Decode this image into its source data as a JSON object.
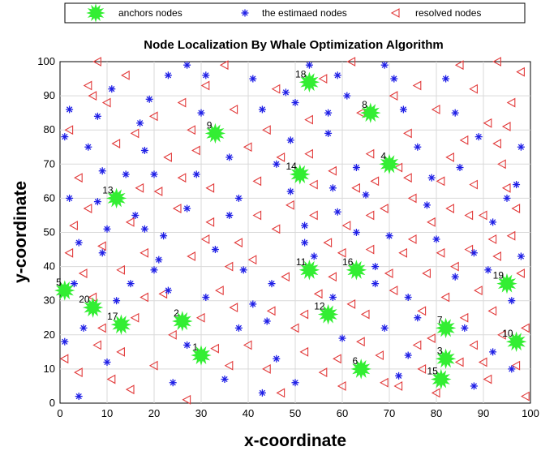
{
  "chart_data": {
    "type": "scatter",
    "title": "Node Localization By Whale Optimization Algorithm",
    "xlabel": "x-coordinate",
    "ylabel": "y-coordinate",
    "xlim": [
      0,
      100
    ],
    "ylim": [
      0,
      100
    ],
    "xticks": [
      0,
      10,
      20,
      30,
      40,
      50,
      60,
      70,
      80,
      90,
      100
    ],
    "yticks": [
      0,
      10,
      20,
      30,
      40,
      50,
      60,
      70,
      80,
      90,
      100
    ],
    "grid": true,
    "legend_position": "top, outside plot",
    "series": [
      {
        "name": "anchors nodes",
        "marker": "starburst",
        "color": "#33ee33",
        "points": [
          {
            "label": "1",
            "x": 30,
            "y": 14
          },
          {
            "label": "2",
            "x": 26,
            "y": 24
          },
          {
            "label": "3",
            "x": 82,
            "y": 13
          },
          {
            "label": "4",
            "x": 70,
            "y": 70
          },
          {
            "label": "5",
            "x": 1,
            "y": 33
          },
          {
            "label": "6",
            "x": 64,
            "y": 10
          },
          {
            "label": "7",
            "x": 82,
            "y": 22
          },
          {
            "label": "8",
            "x": 66,
            "y": 85
          },
          {
            "label": "9",
            "x": 33,
            "y": 79
          },
          {
            "label": "10",
            "x": 97,
            "y": 18
          },
          {
            "label": "11",
            "x": 53,
            "y": 39
          },
          {
            "label": "12",
            "x": 57,
            "y": 26
          },
          {
            "label": "13",
            "x": 12,
            "y": 60
          },
          {
            "label": "14",
            "x": 51,
            "y": 67
          },
          {
            "label": "15",
            "x": 81,
            "y": 7
          },
          {
            "label": "16",
            "x": 63,
            "y": 39
          },
          {
            "label": "17",
            "x": 13,
            "y": 23
          },
          {
            "label": "18",
            "x": 53,
            "y": 94
          },
          {
            "label": "19",
            "x": 95,
            "y": 35
          },
          {
            "label": "20",
            "x": 7,
            "y": 28
          }
        ]
      },
      {
        "name": "the estimaed nodes",
        "marker": "asterisk",
        "color": "#1f1fe6",
        "points": [
          [
            2,
            86
          ],
          [
            1,
            78
          ],
          [
            2,
            60
          ],
          [
            6,
            75
          ],
          [
            4,
            47
          ],
          [
            8,
            84
          ],
          [
            9,
            68
          ],
          [
            8,
            59
          ],
          [
            10,
            51
          ],
          [
            11,
            92
          ],
          [
            14,
            67
          ],
          [
            16,
            55
          ],
          [
            18,
            74
          ],
          [
            19,
            89
          ],
          [
            20,
            67
          ],
          [
            23,
            96
          ],
          [
            21,
            42
          ],
          [
            27,
            99
          ],
          [
            31,
            96
          ],
          [
            29,
            67
          ],
          [
            36,
            72
          ],
          [
            41,
            95
          ],
          [
            43,
            86
          ],
          [
            48,
            91
          ],
          [
            49,
            77
          ],
          [
            50,
            88
          ],
          [
            53,
            99
          ],
          [
            57,
            79
          ],
          [
            59,
            96
          ],
          [
            61,
            90
          ],
          [
            63,
            69
          ],
          [
            65,
            61
          ],
          [
            69,
            99
          ],
          [
            73,
            86
          ],
          [
            76,
            75
          ],
          [
            79,
            66
          ],
          [
            82,
            95
          ],
          [
            84,
            85
          ],
          [
            85,
            69
          ],
          [
            89,
            78
          ],
          [
            92,
            53
          ],
          [
            95,
            60
          ],
          [
            98,
            75
          ],
          [
            97,
            64
          ],
          [
            3,
            35
          ],
          [
            5,
            22
          ],
          [
            4,
            2
          ],
          [
            10,
            12
          ],
          [
            15,
            35
          ],
          [
            18,
            51
          ],
          [
            20,
            39
          ],
          [
            23,
            33
          ],
          [
            24,
            6
          ],
          [
            27,
            17
          ],
          [
            31,
            31
          ],
          [
            33,
            45
          ],
          [
            35,
            7
          ],
          [
            38,
            22
          ],
          [
            39,
            39
          ],
          [
            41,
            29
          ],
          [
            44,
            24
          ],
          [
            46,
            13
          ],
          [
            50,
            6
          ],
          [
            52,
            47
          ],
          [
            52,
            52
          ],
          [
            54,
            43
          ],
          [
            58,
            31
          ],
          [
            59,
            56
          ],
          [
            60,
            19
          ],
          [
            63,
            50
          ],
          [
            67,
            35
          ],
          [
            69,
            22
          ],
          [
            72,
            8
          ],
          [
            74,
            31
          ],
          [
            74,
            14
          ],
          [
            76,
            25
          ],
          [
            80,
            48
          ],
          [
            84,
            37
          ],
          [
            86,
            22
          ],
          [
            88,
            5
          ],
          [
            91,
            39
          ],
          [
            92,
            15
          ],
          [
            96,
            10
          ],
          [
            96,
            30
          ],
          [
            98,
            43
          ],
          [
            1,
            18
          ],
          [
            12,
            30
          ],
          [
            22,
            49
          ],
          [
            36,
            55
          ],
          [
            45,
            35
          ],
          [
            49,
            62
          ],
          [
            58,
            63
          ],
          [
            70,
            49
          ],
          [
            78,
            58
          ],
          [
            88,
            44
          ],
          [
            67,
            40
          ],
          [
            30,
            85
          ],
          [
            38,
            60
          ],
          [
            46,
            70
          ],
          [
            71,
            95
          ],
          [
            57,
            85
          ],
          [
            27,
            57
          ],
          [
            17,
            82
          ],
          [
            9,
            44
          ],
          [
            43,
            3
          ]
        ]
      },
      {
        "name": "resolved nodes",
        "marker": "triangle-left",
        "color": "#e23a3a",
        "points": [
          [
            2,
            80
          ],
          [
            4,
            66
          ],
          [
            6,
            93
          ],
          [
            8,
            100
          ],
          [
            10,
            88
          ],
          [
            14,
            96
          ],
          [
            16,
            79
          ],
          [
            6,
            57
          ],
          [
            9,
            46
          ],
          [
            13,
            39
          ],
          [
            17,
            63
          ],
          [
            20,
            84
          ],
          [
            23,
            72
          ],
          [
            26,
            88
          ],
          [
            28,
            80
          ],
          [
            31,
            93
          ],
          [
            35,
            99
          ],
          [
            32,
            63
          ],
          [
            37,
            86
          ],
          [
            40,
            75
          ],
          [
            44,
            80
          ],
          [
            46,
            92
          ],
          [
            47,
            72
          ],
          [
            53,
            83
          ],
          [
            56,
            95
          ],
          [
            58,
            68
          ],
          [
            62,
            100
          ],
          [
            64,
            85
          ],
          [
            66,
            73
          ],
          [
            71,
            90
          ],
          [
            74,
            79
          ],
          [
            76,
            93
          ],
          [
            80,
            86
          ],
          [
            83,
            72
          ],
          [
            85,
            99
          ],
          [
            88,
            64
          ],
          [
            91,
            82
          ],
          [
            93,
            100
          ],
          [
            96,
            88
          ],
          [
            98,
            97
          ],
          [
            94,
            70
          ],
          [
            3,
            52
          ],
          [
            5,
            38
          ],
          [
            7,
            31
          ],
          [
            8,
            17
          ],
          [
            11,
            7
          ],
          [
            13,
            15
          ],
          [
            16,
            25
          ],
          [
            18,
            44
          ],
          [
            20,
            11
          ],
          [
            22,
            32
          ],
          [
            25,
            57
          ],
          [
            28,
            43
          ],
          [
            30,
            25
          ],
          [
            32,
            53
          ],
          [
            34,
            33
          ],
          [
            36,
            11
          ],
          [
            38,
            47
          ],
          [
            40,
            17
          ],
          [
            42,
            65
          ],
          [
            45,
            27
          ],
          [
            46,
            51
          ],
          [
            48,
            37
          ],
          [
            50,
            22
          ],
          [
            52,
            15
          ],
          [
            54,
            55
          ],
          [
            56,
            9
          ],
          [
            57,
            47
          ],
          [
            58,
            37
          ],
          [
            60,
            5
          ],
          [
            62,
            29
          ],
          [
            63,
            63
          ],
          [
            65,
            26
          ],
          [
            66,
            45
          ],
          [
            68,
            14
          ],
          [
            69,
            57
          ],
          [
            71,
            33
          ],
          [
            72,
            5
          ],
          [
            73,
            44
          ],
          [
            75,
            60
          ],
          [
            76,
            17
          ],
          [
            77,
            27
          ],
          [
            78,
            38
          ],
          [
            79,
            53
          ],
          [
            80,
            3
          ],
          [
            82,
            31
          ],
          [
            83,
            57
          ],
          [
            85,
            12
          ],
          [
            86,
            25
          ],
          [
            87,
            45
          ],
          [
            88,
            17
          ],
          [
            89,
            33
          ],
          [
            90,
            55
          ],
          [
            91,
            7
          ],
          [
            92,
            27
          ],
          [
            93,
            43
          ],
          [
            94,
            20
          ],
          [
            95,
            63
          ],
          [
            96,
            49
          ],
          [
            97,
            11
          ],
          [
            98,
            38
          ],
          [
            99,
            22
          ],
          [
            99,
            2
          ],
          [
            1,
            13
          ],
          [
            2,
            44
          ],
          [
            9,
            22
          ],
          [
            15,
            53
          ],
          [
            24,
            20
          ],
          [
            27,
            1
          ],
          [
            33,
            16
          ],
          [
            37,
            28
          ],
          [
            41,
            42
          ],
          [
            44,
            10
          ],
          [
            49,
            58
          ],
          [
            55,
            32
          ],
          [
            59,
            13
          ],
          [
            61,
            52
          ],
          [
            64,
            18
          ],
          [
            67,
            65
          ],
          [
            69,
            6
          ],
          [
            72,
            69
          ],
          [
            75,
            48
          ],
          [
            77,
            10
          ],
          [
            81,
            65
          ],
          [
            84,
            40
          ],
          [
            87,
            55
          ],
          [
            90,
            12
          ],
          [
            93,
            76
          ],
          [
            95,
            81
          ],
          [
            97,
            57
          ],
          [
            18,
            31
          ],
          [
            21,
            62
          ],
          [
            26,
            66
          ],
          [
            29,
            74
          ],
          [
            12,
            76
          ],
          [
            7,
            90
          ],
          [
            36,
            40
          ],
          [
            42,
            55
          ],
          [
            47,
            3
          ],
          [
            52,
            26
          ],
          [
            53,
            73
          ],
          [
            60,
            44
          ],
          [
            66,
            55
          ],
          [
            70,
            38
          ],
          [
            74,
            66
          ],
          [
            79,
            19
          ],
          [
            81,
            44
          ],
          [
            86,
            77
          ],
          [
            88,
            92
          ],
          [
            92,
            48
          ],
          [
            54,
            64
          ],
          [
            31,
            48
          ],
          [
            15,
            4
          ],
          [
            4,
            9
          ]
        ]
      }
    ]
  }
}
